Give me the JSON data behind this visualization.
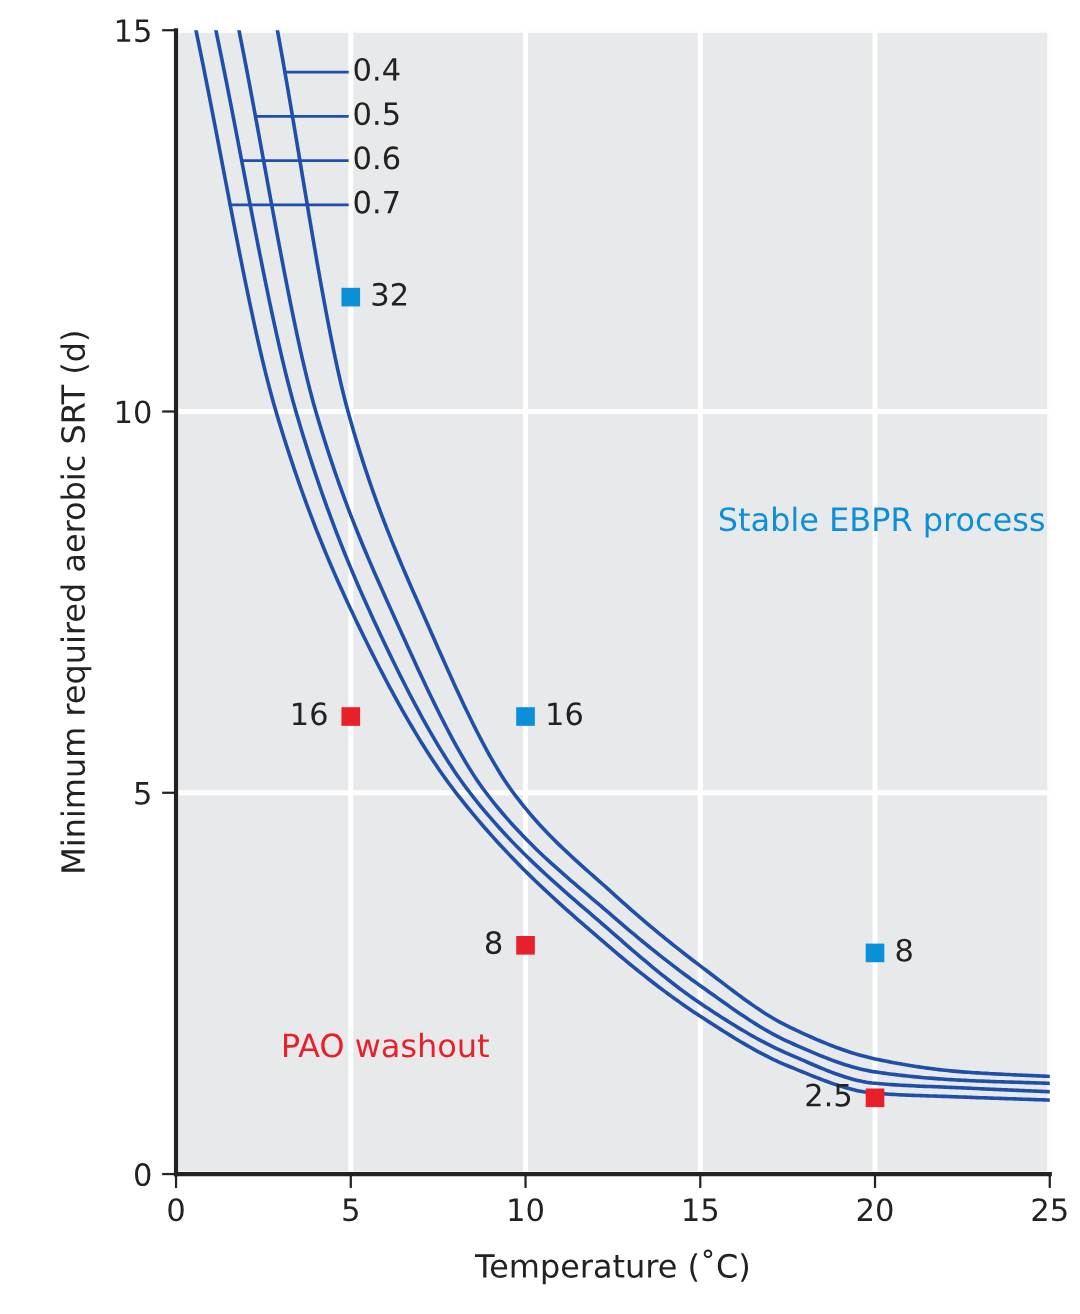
{
  "chart_data": {
    "type": "line",
    "xlabel": "Temperature (˚C)",
    "ylabel": "Minimum required aerobic SRT (d)",
    "xlim": [
      0,
      25
    ],
    "ylim": [
      0,
      15
    ],
    "xticks": [
      0,
      5,
      10,
      15,
      20,
      25
    ],
    "yticks": [
      0,
      5,
      10,
      15
    ],
    "grid": true,
    "legend": "top left",
    "annotations": [
      "Stable EBPR process",
      "PAO washout",
      {
        "text": "32",
        "x": 5,
        "y": 11.5
      },
      {
        "text": "16",
        "x": 10,
        "y": 6.0
      },
      {
        "text": "8",
        "x": 20,
        "y": 2.9
      },
      {
        "text": "16",
        "x": 5,
        "y": 6.0
      },
      {
        "text": "8",
        "x": 10,
        "y": 3.0
      },
      {
        "text": "2.5",
        "x": 20,
        "y": 1.0
      }
    ],
    "series": [
      {
        "name": "0.4",
        "color": "#1f4fa8",
        "x": [
          2.9,
          4.92,
          7.15,
          9.65,
          12.5,
          15,
          17.5,
          20,
          22.5,
          25
        ],
        "values": [
          15,
          10,
          7.26,
          5,
          3.68,
          2.73,
          1.94,
          1.51,
          1.34,
          1.28
        ]
      },
      {
        "name": "0.5",
        "color": "#1f4fa8",
        "x": [
          1.8,
          4.0,
          6.29,
          8.87,
          12.5,
          15,
          17.5,
          20,
          22.5,
          25
        ],
        "values": [
          15,
          10,
          7.26,
          5,
          3.38,
          2.47,
          1.74,
          1.34,
          1.23,
          1.19
        ]
      },
      {
        "name": "0.6",
        "color": "#1f4fa8",
        "x": [
          1.14,
          3.43,
          5.66,
          8.41,
          12.5,
          15,
          17.5,
          20,
          22.5,
          25
        ],
        "values": [
          15,
          10,
          7.26,
          5,
          3.16,
          2.24,
          1.58,
          1.19,
          1.13,
          1.08
        ]
      },
      {
        "name": "0.7",
        "color": "#1f4fa8",
        "x": [
          0.57,
          2.86,
          5.15,
          8.01,
          12.5,
          15,
          17.5,
          20,
          22.5,
          25
        ],
        "values": [
          15,
          10,
          7.26,
          5,
          2.94,
          2.07,
          1.42,
          1.06,
          1.01,
          0.97
        ]
      },
      {
        "type": "scatter",
        "marker": "square",
        "color": "#0a8fd8",
        "x": [
          5,
          10,
          20
        ],
        "values": [
          11.5,
          6.0,
          2.9
        ]
      },
      {
        "type": "scatter",
        "marker": "square",
        "color": "#e8202a",
        "x": [
          5,
          10,
          20
        ],
        "values": [
          6.0,
          3.0,
          1.0
        ]
      }
    ]
  }
}
